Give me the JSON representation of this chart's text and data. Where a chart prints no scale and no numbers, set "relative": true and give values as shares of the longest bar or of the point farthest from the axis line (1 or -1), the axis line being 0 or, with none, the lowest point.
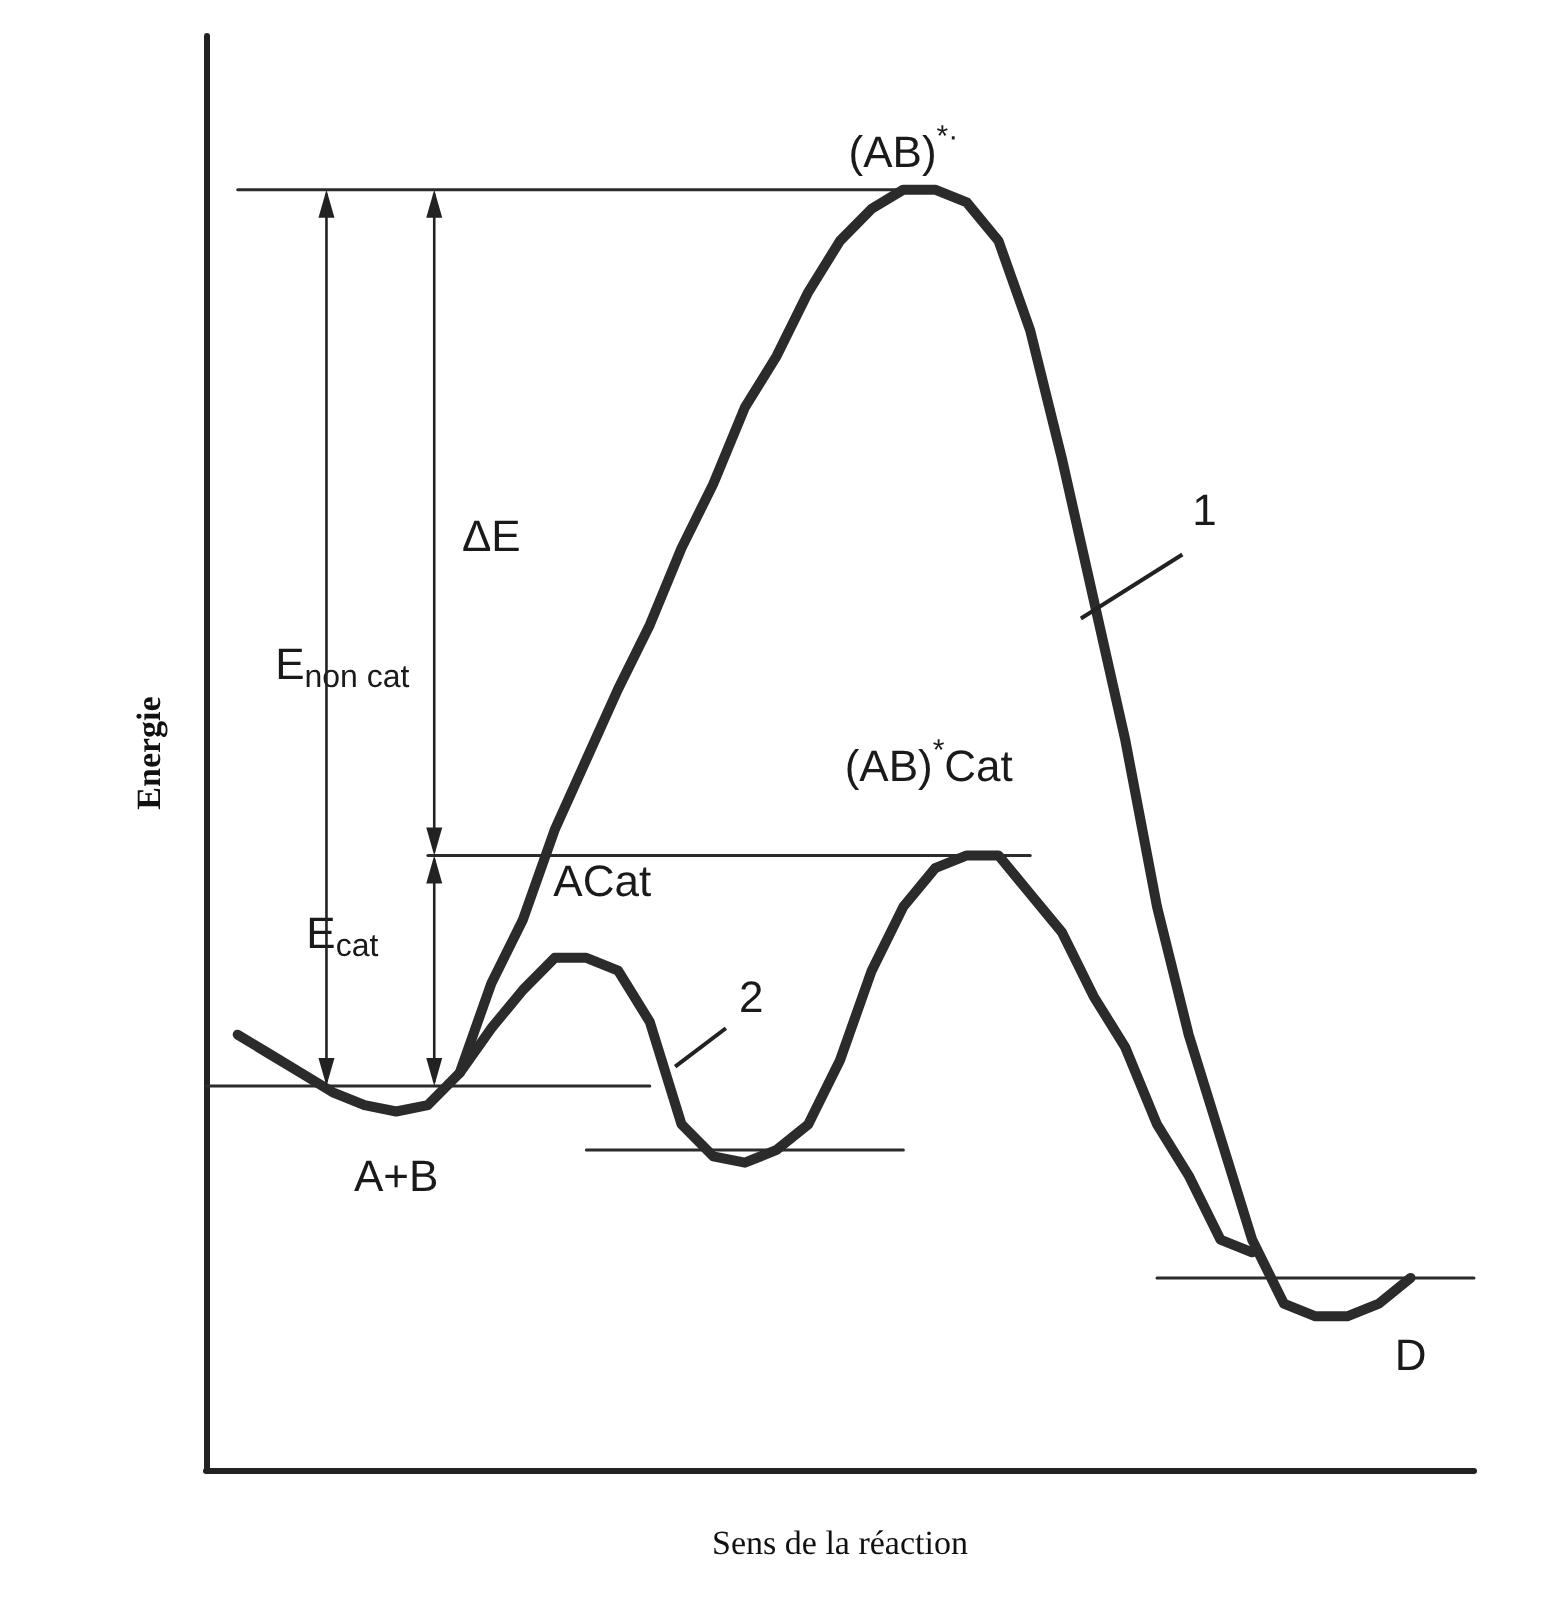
{
  "chart_data": {
    "type": "line",
    "relative": true,
    "xlabel": "Sens de la réaction",
    "ylabel": "Energie",
    "categories": [
      null,
      null,
      null,
      null,
      null,
      null,
      null,
      null,
      null,
      null,
      null,
      null,
      null,
      null,
      null,
      null,
      null,
      null,
      null,
      null,
      null,
      null,
      null,
      null,
      null,
      null,
      null,
      null,
      null,
      null,
      null,
      null,
      null,
      null,
      null,
      null,
      null,
      null,
      null,
      null,
      null
    ],
    "grid": false,
    "marker": "none",
    "line_style": "solid",
    "series": [
      {
        "color": "#2b2b2b",
        "values": [
          null,
          0.34,
          0.325,
          0.31,
          0.295,
          0.285,
          0.28,
          0.285,
          0.31,
          0.38,
          0.43,
          0.5,
          0.555,
          0.61,
          0.66,
          0.72,
          0.77,
          0.83,
          0.87,
          0.92,
          0.96,
          0.985,
          1.0,
          1.0,
          0.99,
          0.96,
          0.89,
          0.79,
          0.68,
          0.57,
          0.44,
          0.34,
          0.26,
          0.18,
          0.13,
          0.12,
          0.12,
          0.13,
          0.15,
          null,
          null
        ]
      },
      {
        "color": "#2b2b2b",
        "values": [
          null,
          null,
          null,
          null,
          null,
          null,
          null,
          null,
          0.31,
          0.345,
          0.375,
          0.4,
          0.4,
          0.39,
          0.35,
          0.27,
          0.245,
          0.24,
          0.25,
          0.27,
          0.32,
          0.39,
          0.44,
          0.47,
          0.48,
          0.48,
          0.45,
          0.42,
          0.37,
          0.33,
          0.27,
          0.23,
          0.18,
          0.17,
          null,
          null,
          null,
          null,
          null,
          null,
          null
        ]
      },
      {
        "color": "#2b2b2b",
        "values": [
          null,
          1.0,
          null,
          null,
          null,
          null,
          null,
          null,
          null,
          null,
          null,
          null,
          null,
          null,
          null,
          null,
          null,
          null,
          null,
          null,
          null,
          null,
          1.0,
          null,
          null,
          null,
          null,
          null,
          null,
          null,
          null,
          null,
          null,
          null,
          null,
          null,
          null,
          null,
          null,
          null,
          null
        ]
      },
      {
        "color": "#2b2b2b",
        "values": [
          null,
          null,
          null,
          null,
          null,
          null,
          null,
          0.48,
          null,
          null,
          null,
          null,
          null,
          null,
          null,
          null,
          null,
          null,
          null,
          null,
          null,
          null,
          null,
          null,
          null,
          null,
          0.48,
          null,
          null,
          null,
          null,
          null,
          null,
          null,
          null,
          null,
          null,
          null,
          null,
          null,
          null
        ]
      },
      {
        "color": "#2b2b2b",
        "values": [
          0.3,
          null,
          null,
          null,
          null,
          null,
          null,
          null,
          null,
          null,
          null,
          null,
          null,
          null,
          0.3,
          null,
          null,
          null,
          null,
          null,
          null,
          null,
          null,
          null,
          null,
          null,
          null,
          null,
          null,
          null,
          null,
          null,
          null,
          null,
          null,
          null,
          null,
          null,
          null,
          null,
          null
        ]
      },
      {
        "color": "#2b2b2b",
        "values": [
          null,
          null,
          null,
          null,
          null,
          null,
          null,
          null,
          null,
          null,
          null,
          null,
          0.25,
          null,
          null,
          null,
          null,
          null,
          null,
          null,
          null,
          null,
          0.25,
          null,
          null,
          null,
          null,
          null,
          null,
          null,
          null,
          null,
          null,
          null,
          null,
          null,
          null,
          null,
          null,
          null,
          null
        ]
      },
      {
        "color": "#2b2b2b",
        "values": [
          null,
          null,
          null,
          null,
          null,
          null,
          null,
          null,
          null,
          null,
          null,
          null,
          null,
          null,
          null,
          null,
          null,
          null,
          null,
          null,
          null,
          null,
          null,
          null,
          null,
          null,
          null,
          null,
          null,
          null,
          0.15,
          null,
          null,
          null,
          null,
          null,
          null,
          null,
          null,
          null,
          0.15
        ]
      }
    ],
    "annotations": [
      "(AB)$^{*·}$",
      "(AB)$^{*}$Cat",
      "ACat",
      "1",
      "2",
      "A+B",
      "D",
      "E$_{non cat}$",
      "ΔE",
      "E$_{cat}$"
    ]
  }
}
